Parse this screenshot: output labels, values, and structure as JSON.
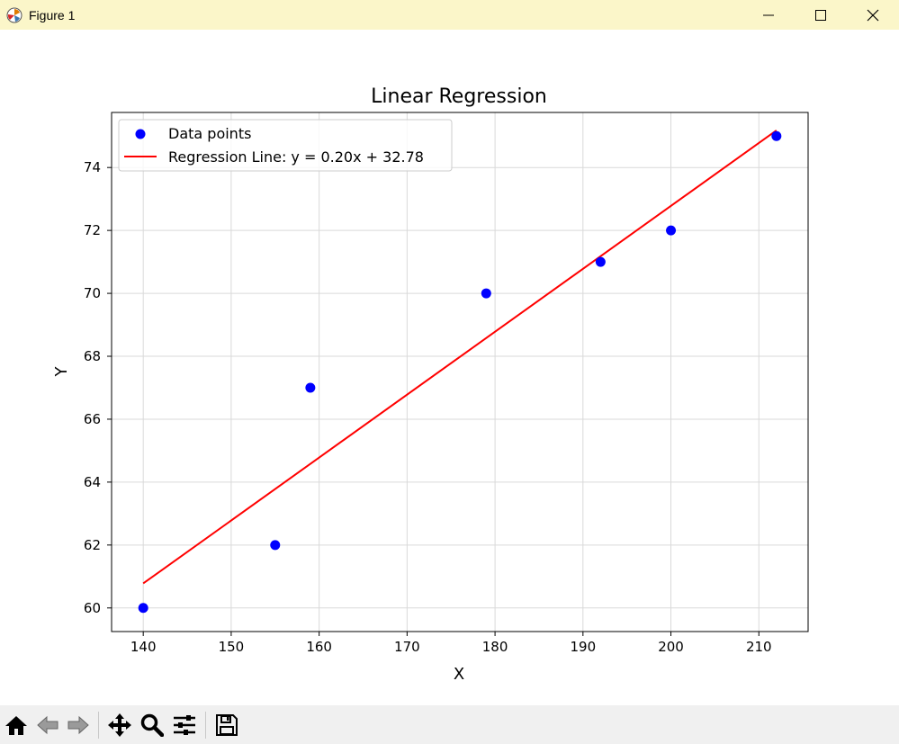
{
  "window": {
    "title": "Figure 1",
    "icon": "matplotlib-logo-icon",
    "controls": [
      "minimize-icon",
      "maximize-icon",
      "close-icon"
    ]
  },
  "toolbar": {
    "buttons": [
      "home-icon",
      "back-arrow-icon",
      "forward-arrow-icon",
      "pan-icon",
      "zoom-icon",
      "configure-subplots-icon",
      "save-icon"
    ]
  },
  "chart_data": {
    "type": "scatter",
    "title": "Linear Regression",
    "xlabel": "X",
    "ylabel": "Y",
    "xlim": [
      136.4,
      215.6
    ],
    "ylim": [
      59.25,
      75.75
    ],
    "xticks": [
      140,
      150,
      160,
      170,
      180,
      190,
      200,
      210
    ],
    "yticks": [
      60,
      62,
      64,
      66,
      68,
      70,
      72,
      74
    ],
    "grid": true,
    "legend_position": "top-left",
    "series": [
      {
        "name": "Data points",
        "type": "scatter",
        "color": "#0000ff",
        "x": [
          140,
          155,
          159,
          179,
          192,
          200,
          212
        ],
        "y": [
          60,
          62,
          67,
          70,
          71,
          72,
          75
        ]
      },
      {
        "name": "Regression Line: y = 0.20x + 32.78",
        "type": "line",
        "color": "#ff0000",
        "x": [
          140,
          212
        ],
        "y": [
          60.78,
          75.18
        ]
      }
    ]
  }
}
